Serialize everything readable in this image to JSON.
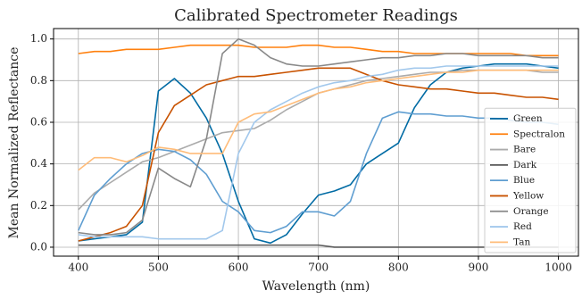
{
  "chart_data": {
    "type": "line",
    "title": "Calibrated Spectrometer Readings",
    "xlabel": "Wavelength (nm)",
    "ylabel": "Mean Normalized Reflectance",
    "x": [
      400,
      420,
      440,
      460,
      480,
      500,
      520,
      540,
      560,
      580,
      600,
      620,
      640,
      660,
      680,
      700,
      720,
      740,
      760,
      780,
      800,
      820,
      840,
      860,
      880,
      900,
      920,
      940,
      960,
      980,
      1000
    ],
    "series": [
      {
        "name": "Green",
        "color": "#006BA4",
        "values": [
          0.03,
          0.04,
          0.05,
          0.06,
          0.12,
          0.75,
          0.81,
          0.74,
          0.62,
          0.45,
          0.22,
          0.04,
          0.02,
          0.06,
          0.16,
          0.25,
          0.27,
          0.3,
          0.4,
          0.45,
          0.5,
          0.67,
          0.78,
          0.84,
          0.86,
          0.87,
          0.88,
          0.88,
          0.88,
          0.87,
          0.86
        ]
      },
      {
        "name": "Spectralon",
        "color": "#FF800E",
        "values": [
          0.93,
          0.94,
          0.94,
          0.95,
          0.95,
          0.95,
          0.96,
          0.97,
          0.97,
          0.97,
          0.97,
          0.96,
          0.96,
          0.96,
          0.97,
          0.97,
          0.96,
          0.96,
          0.95,
          0.94,
          0.94,
          0.93,
          0.93,
          0.93,
          0.93,
          0.93,
          0.93,
          0.93,
          0.92,
          0.92,
          0.92
        ]
      },
      {
        "name": "Bare",
        "color": "#ABABAB",
        "values": [
          0.18,
          0.26,
          0.31,
          0.36,
          0.41,
          0.43,
          0.46,
          0.49,
          0.52,
          0.55,
          0.56,
          0.57,
          0.61,
          0.66,
          0.7,
          0.74,
          0.76,
          0.78,
          0.8,
          0.81,
          0.82,
          0.83,
          0.84,
          0.84,
          0.85,
          0.85,
          0.85,
          0.85,
          0.85,
          0.84,
          0.84
        ]
      },
      {
        "name": "Dark",
        "color": "#595959",
        "values": [
          0.01,
          0.01,
          0.01,
          0.01,
          0.01,
          0.01,
          0.01,
          0.01,
          0.01,
          0.01,
          0.01,
          0.01,
          0.01,
          0.01,
          0.01,
          0.01,
          0.0,
          0.0,
          0.0,
          0.0,
          0.0,
          0.0,
          0.0,
          0.0,
          0.0,
          0.0,
          0.0,
          0.0,
          0.0,
          0.0,
          0.0
        ]
      },
      {
        "name": "Blue",
        "color": "#5F9ED1",
        "values": [
          0.08,
          0.25,
          0.33,
          0.4,
          0.45,
          0.47,
          0.46,
          0.42,
          0.35,
          0.22,
          0.17,
          0.08,
          0.07,
          0.1,
          0.17,
          0.17,
          0.15,
          0.22,
          0.45,
          0.62,
          0.65,
          0.64,
          0.64,
          0.63,
          0.63,
          0.62,
          0.62,
          0.61,
          0.6,
          0.6,
          0.59
        ]
      },
      {
        "name": "Yellow",
        "color": "#C85200",
        "values": [
          0.03,
          0.05,
          0.07,
          0.1,
          0.2,
          0.55,
          0.68,
          0.73,
          0.78,
          0.8,
          0.82,
          0.82,
          0.83,
          0.84,
          0.85,
          0.86,
          0.86,
          0.86,
          0.83,
          0.8,
          0.78,
          0.77,
          0.76,
          0.76,
          0.75,
          0.74,
          0.74,
          0.73,
          0.72,
          0.72,
          0.71
        ]
      },
      {
        "name": "Orange",
        "color": "#898989",
        "values": [
          0.07,
          0.06,
          0.06,
          0.07,
          0.13,
          0.38,
          0.33,
          0.29,
          0.52,
          0.93,
          1.0,
          0.97,
          0.91,
          0.88,
          0.87,
          0.87,
          0.88,
          0.89,
          0.9,
          0.91,
          0.91,
          0.92,
          0.92,
          0.93,
          0.93,
          0.92,
          0.92,
          0.92,
          0.92,
          0.91,
          0.91
        ]
      },
      {
        "name": "Red",
        "color": "#A2C8EC",
        "values": [
          0.06,
          0.05,
          0.05,
          0.05,
          0.05,
          0.04,
          0.04,
          0.04,
          0.04,
          0.08,
          0.45,
          0.6,
          0.66,
          0.7,
          0.74,
          0.77,
          0.79,
          0.8,
          0.82,
          0.83,
          0.85,
          0.86,
          0.86,
          0.87,
          0.87,
          0.87,
          0.87,
          0.87,
          0.87,
          0.87,
          0.87
        ]
      },
      {
        "name": "Tan",
        "color": "#FFBC79",
        "values": [
          0.37,
          0.43,
          0.43,
          0.41,
          0.44,
          0.48,
          0.47,
          0.45,
          0.45,
          0.45,
          0.6,
          0.64,
          0.65,
          0.68,
          0.71,
          0.74,
          0.76,
          0.77,
          0.79,
          0.8,
          0.81,
          0.82,
          0.83,
          0.84,
          0.84,
          0.85,
          0.85,
          0.85,
          0.85,
          0.85,
          0.85
        ]
      }
    ],
    "xlim": [
      369,
      1025
    ],
    "ylim": [
      -0.043,
      1.05
    ],
    "xticks": [
      400,
      500,
      600,
      700,
      800,
      900,
      1000
    ],
    "yticks": [
      {
        "value": 0,
        "label": "0.0"
      },
      {
        "value": 0.2,
        "label": "0.2"
      },
      {
        "value": 0.4,
        "label": "0.4"
      },
      {
        "value": 0.6,
        "label": "0.6"
      },
      {
        "value": 0.8,
        "label": "0.8"
      },
      {
        "value": 1,
        "label": "1.0"
      }
    ],
    "grid": true,
    "legend": "lower right"
  }
}
